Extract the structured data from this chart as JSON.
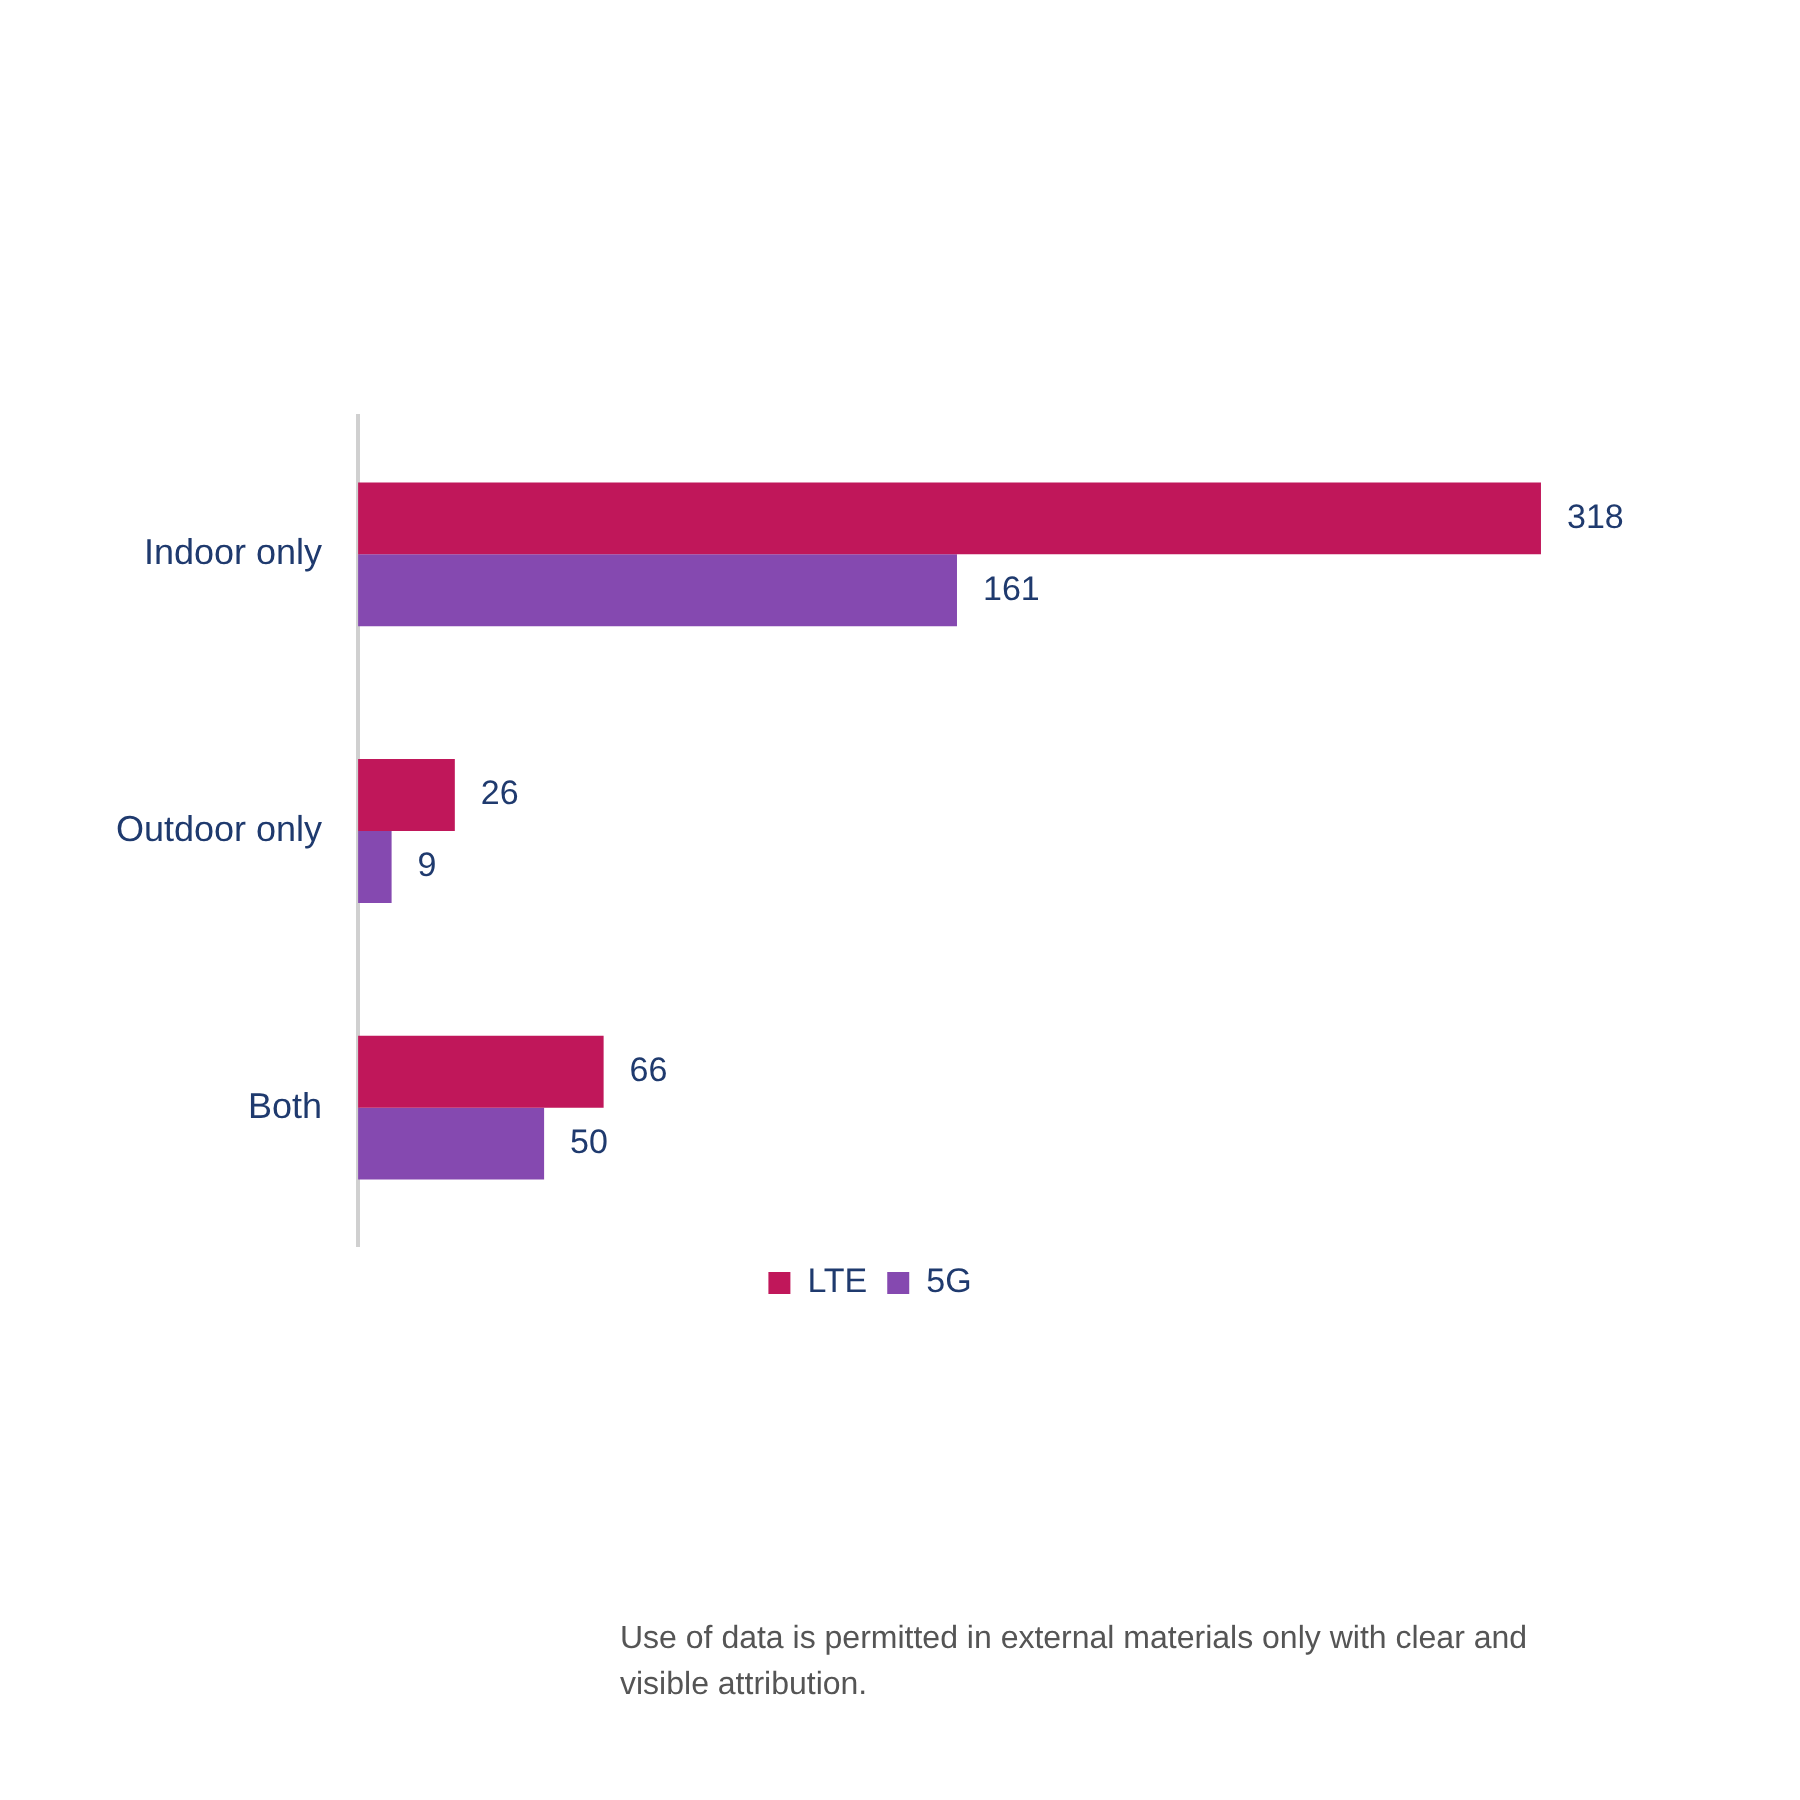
{
  "chart_data": {
    "type": "bar",
    "orientation": "horizontal",
    "categories": [
      "Indoor only",
      "Outdoor only",
      "Both"
    ],
    "series": [
      {
        "name": "LTE",
        "color": "#c0175a",
        "values": [
          318,
          26,
          66
        ]
      },
      {
        "name": "5G",
        "color": "#8549b0",
        "values": [
          161,
          9,
          50
        ]
      }
    ],
    "data_labels": true,
    "legend": "bottom",
    "tick_labels": "y",
    "annotations": [
      "Use of data is permitted in external materials only with clear and visible attribution."
    ]
  }
}
